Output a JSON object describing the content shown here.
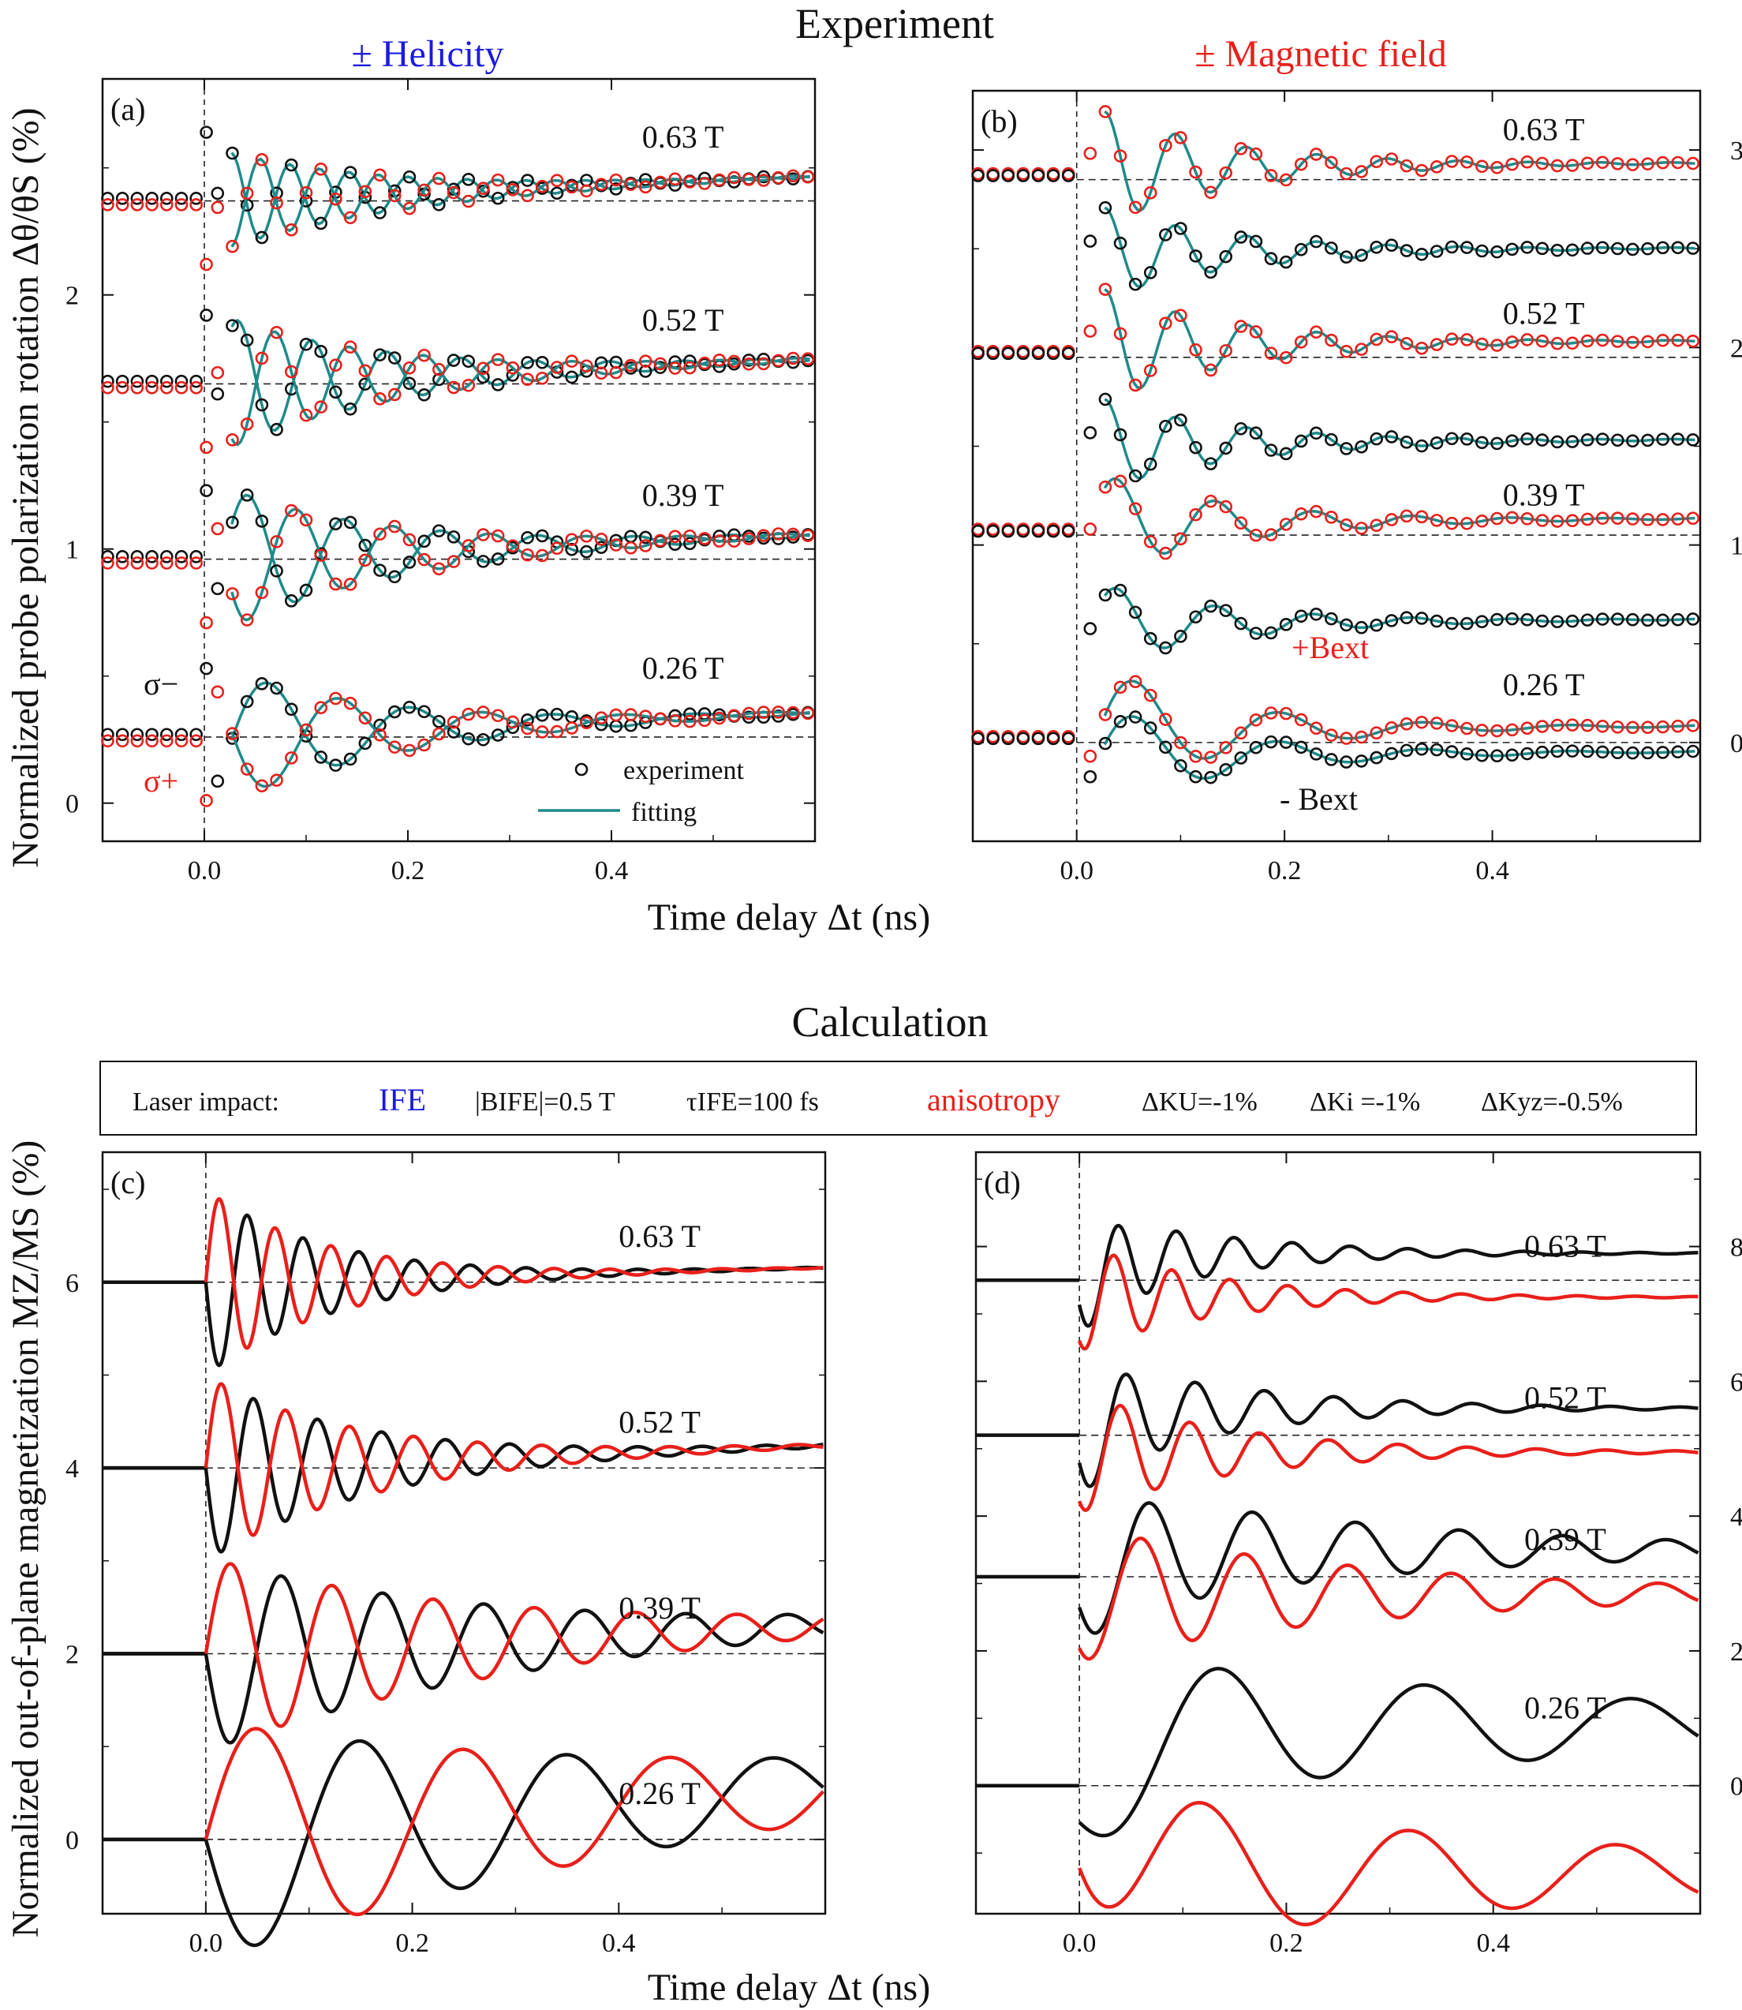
{
  "sections": {
    "experiment_title": "Experiment",
    "calculation_title": "Calculation"
  },
  "column_titles": {
    "helicity": "± Helicity",
    "magnetic_field": "± Magnetic field"
  },
  "axis_titles": {
    "x_top": "Time delay  Δt (ns)",
    "x_bottom": "Time delay  Δt (ns)",
    "y_top": "Normalized probe polarization rotation  Δθ/θS (%)",
    "y_bottom": "Normalized out-of-plane magnetization MZ/MS (%)"
  },
  "laser_box": {
    "prefix": "Laser  impact:",
    "ife_label": "IFE",
    "b_ife": "|BIFE|=0.5 T",
    "tau_ife": "τIFE=100 fs",
    "anisotropy_label": "anisotropy",
    "dk_u": "ΔKU=-1%",
    "dk_i": "ΔKi =-1%",
    "dk_yz": "ΔKyz=-0.5%"
  },
  "colors": {
    "black": "#111111",
    "red": "#e8201a",
    "fit": "#1f8a8a",
    "blue": "#1a1ae0"
  },
  "chart_data": [
    {
      "panel": "(a)",
      "type": "scatter",
      "title": "± Helicity",
      "xlabel": "Time delay  Δt (ns)",
      "ylabel": "Normalized probe polarization rotation  Δθ/θS (%)",
      "xlim": [
        -0.1,
        0.6
      ],
      "ylim": [
        -0.15,
        2.85
      ],
      "xticks": [
        "0.0",
        "0.2",
        "0.4"
      ],
      "yticks": [
        "0",
        "1",
        "2"
      ],
      "field_labels": [
        "0.63 T",
        "0.52 T",
        "0.39 T",
        "0.26 T"
      ],
      "baselines": [
        2.37,
        1.65,
        0.96,
        0.26
      ],
      "series": [
        {
          "name": "σ−",
          "color": "black",
          "role": "experiment (circles)"
        },
        {
          "name": "σ+",
          "color": "red",
          "role": "experiment (circles)"
        },
        {
          "name": "fitting",
          "color": "teal",
          "role": "fit line"
        }
      ],
      "legend": [
        "experiment",
        "fitting"
      ],
      "legend_position": "bottom-right",
      "annotations": [
        "σ−",
        "σ+"
      ]
    },
    {
      "panel": "(b)",
      "type": "scatter",
      "title": "± Magnetic field",
      "xlabel": "Time delay  Δt (ns)",
      "ylabel": "",
      "xlim": [
        -0.1,
        0.6
      ],
      "ylim": [
        -0.5,
        3.3
      ],
      "xticks": [
        "0.0",
        "0.2",
        "0.4"
      ],
      "yticks": [
        "0",
        "1",
        "2",
        "3"
      ],
      "y_axis_side": "right",
      "field_labels": [
        "0.63 T",
        "0.52 T",
        "0.39 T",
        "0.26 T"
      ],
      "baselines": [
        2.85,
        1.95,
        1.05,
        0.0
      ],
      "series": [
        {
          "name": "+Bext",
          "color": "red",
          "role": "experiment (circles)"
        },
        {
          "name": "- Bext",
          "color": "black",
          "role": "experiment (circles)"
        },
        {
          "name": "fitting",
          "color": "teal",
          "role": "fit line"
        }
      ],
      "annotations": [
        "+Bext",
        "- Bext"
      ]
    },
    {
      "panel": "(c)",
      "type": "line",
      "xlabel": "Time delay  Δt (ns)",
      "ylabel": "Normalized out-of-plane magnetization MZ/MS (%)",
      "xlim": [
        -0.1,
        0.6
      ],
      "ylim": [
        -0.8,
        7.4
      ],
      "xticks": [
        "0.0",
        "0.2",
        "0.4"
      ],
      "yticks": [
        "0",
        "2",
        "4",
        "6"
      ],
      "field_labels": [
        "0.63 T",
        "0.52 T",
        "0.39 T",
        "0.26 T"
      ],
      "baselines": [
        6,
        4,
        2,
        0
      ],
      "series": [
        {
          "name": "black (σ−)",
          "color": "black"
        },
        {
          "name": "red (σ+)",
          "color": "red"
        }
      ]
    },
    {
      "panel": "(d)",
      "type": "line",
      "xlabel": "",
      "ylabel": "",
      "xlim": [
        -0.1,
        0.6
      ],
      "ylim": [
        -1.9,
        9.4
      ],
      "xticks": [
        "0.0",
        "0.2",
        "0.4"
      ],
      "yticks": [
        "0",
        "2",
        "4",
        "6",
        "8"
      ],
      "y_axis_side": "right",
      "field_labels": [
        "0.63 T",
        "0.52 T",
        "0.39 T",
        "0.26 T"
      ],
      "baselines": [
        7.5,
        5.2,
        3.1,
        0.0
      ],
      "series": [
        {
          "name": "black (+Bext)",
          "color": "black"
        },
        {
          "name": "red (−Bext)",
          "color": "red"
        }
      ]
    }
  ]
}
